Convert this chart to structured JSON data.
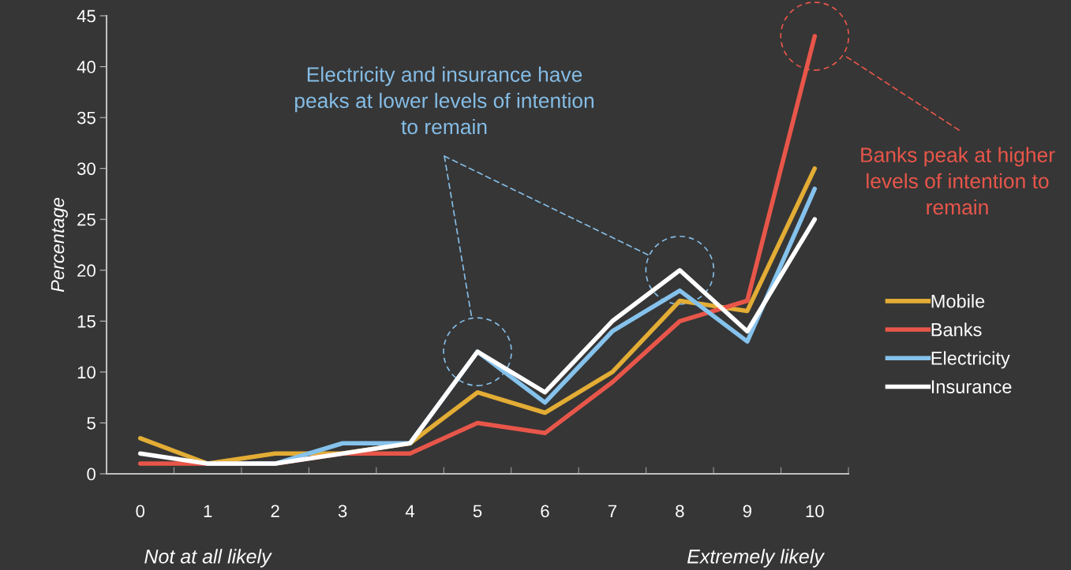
{
  "chart_data": {
    "type": "line",
    "ylabel": "Percentage",
    "categories": [
      "0",
      "1",
      "2",
      "3",
      "4",
      "5",
      "6",
      "7",
      "8",
      "9",
      "10"
    ],
    "series": [
      {
        "name": "Mobile",
        "color": "#e3ad35",
        "values": [
          3.5,
          1,
          2,
          2,
          3,
          8,
          6,
          10,
          17,
          16,
          30
        ]
      },
      {
        "name": "Banks",
        "color": "#e8564a",
        "values": [
          1,
          1,
          1,
          2,
          2,
          5,
          4,
          9,
          15,
          17,
          43
        ]
      },
      {
        "name": "Electricity",
        "color": "#85c2ec",
        "values": [
          null,
          1,
          1,
          3,
          3,
          12,
          7,
          14,
          18,
          13,
          28
        ]
      },
      {
        "name": "Insurance",
        "color": "#ffffff",
        "values": [
          2,
          1,
          1,
          2,
          3,
          12,
          8,
          15,
          20,
          14,
          25
        ]
      }
    ],
    "ylim": [
      0,
      45
    ],
    "yticks": [
      0,
      5,
      10,
      15,
      20,
      25,
      30,
      35,
      40,
      45
    ],
    "grid": false,
    "legend": "right",
    "marker": "none",
    "line_style": "solid",
    "annotations": [
      "Electricity and insurance have\npeaks at lower levels of intention\nto remain",
      "Banks peak at higher\nlevels of intention to\nremain",
      "Not at all likely",
      "Extremely likely"
    ]
  }
}
